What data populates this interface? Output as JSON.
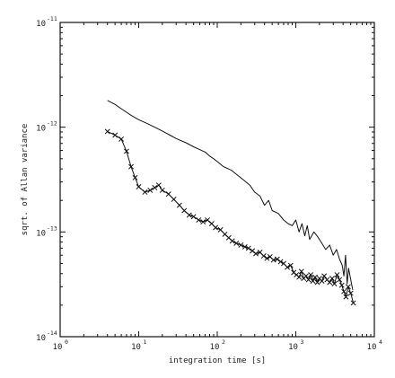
{
  "chart_data": {
    "type": "line",
    "xlabel": "integration time [s]",
    "ylabel": "sqrt. of Allan variance",
    "x_scale": "log",
    "y_scale": "log",
    "xlim": [
      1,
      10000
    ],
    "ylim": [
      1e-14,
      1e-11
    ],
    "grid": false,
    "legend": "none",
    "x_ticks": [
      {
        "base": "10",
        "exp": "0"
      },
      {
        "base": "10",
        "exp": "1"
      },
      {
        "base": "10",
        "exp": "2"
      },
      {
        "base": "10",
        "exp": "3"
      },
      {
        "base": "10",
        "exp": "4"
      }
    ],
    "y_ticks": [
      {
        "base": "10",
        "exp": "-14"
      },
      {
        "base": "10",
        "exp": "-13"
      },
      {
        "base": "10",
        "exp": "-12"
      },
      {
        "base": "10",
        "exp": "-11"
      }
    ],
    "series": [
      {
        "style": "line",
        "color": "#111111",
        "points": [
          [
            4,
            1.8e-12
          ],
          [
            5,
            1.65e-12
          ],
          [
            6,
            1.5e-12
          ],
          [
            8,
            1.3e-12
          ],
          [
            10,
            1.18e-12
          ],
          [
            13,
            1.08e-12
          ],
          [
            16,
            1e-12
          ],
          [
            20,
            9.2e-13
          ],
          [
            25,
            8.4e-13
          ],
          [
            30,
            7.8e-13
          ],
          [
            40,
            7.1e-13
          ],
          [
            50,
            6.5e-13
          ],
          [
            60,
            6.1e-13
          ],
          [
            70,
            5.8e-13
          ],
          [
            80,
            5.3e-13
          ],
          [
            90,
            5e-13
          ],
          [
            100,
            4.7e-13
          ],
          [
            120,
            4.2e-13
          ],
          [
            150,
            3.9e-13
          ],
          [
            180,
            3.5e-13
          ],
          [
            220,
            3.1e-13
          ],
          [
            260,
            2.8e-13
          ],
          [
            300,
            2.4e-13
          ],
          [
            350,
            2.2e-13
          ],
          [
            400,
            1.8e-13
          ],
          [
            450,
            2e-13
          ],
          [
            500,
            1.6e-13
          ],
          [
            600,
            1.5e-13
          ],
          [
            700,
            1.3e-13
          ],
          [
            800,
            1.2e-13
          ],
          [
            900,
            1.15e-13
          ],
          [
            1000,
            1.3e-13
          ],
          [
            1100,
            1e-13
          ],
          [
            1200,
            1.2e-13
          ],
          [
            1300,
            9.2e-14
          ],
          [
            1400,
            1.15e-13
          ],
          [
            1500,
            8.5e-14
          ],
          [
            1700,
            1e-13
          ],
          [
            1900,
            9e-14
          ],
          [
            2100,
            8e-14
          ],
          [
            2400,
            6.8e-14
          ],
          [
            2700,
            7.5e-14
          ],
          [
            3000,
            6e-14
          ],
          [
            3300,
            6.8e-14
          ],
          [
            3600,
            5.5e-14
          ],
          [
            3900,
            4.8e-14
          ],
          [
            4100,
            3.8e-14
          ],
          [
            4300,
            6e-14
          ],
          [
            4500,
            3.2e-14
          ],
          [
            4700,
            4.5e-14
          ],
          [
            5000,
            3.5e-14
          ],
          [
            5300,
            2.8e-14
          ]
        ]
      },
      {
        "style": "line-markers",
        "marker": "x",
        "color": "#111111",
        "points": [
          [
            4,
            9.1e-13
          ],
          [
            5,
            8.4e-13
          ],
          [
            6,
            7.7e-13
          ],
          [
            7,
            5.9e-13
          ],
          [
            8,
            4.2e-13
          ],
          [
            9,
            3.3e-13
          ],
          [
            10,
            2.7e-13
          ],
          [
            12,
            2.4e-13
          ],
          [
            14,
            2.5e-13
          ],
          [
            16,
            2.65e-13
          ],
          [
            18,
            2.8e-13
          ],
          [
            20,
            2.5e-13
          ],
          [
            24,
            2.3e-13
          ],
          [
            28,
            2.05e-13
          ],
          [
            33,
            1.8e-13
          ],
          [
            38,
            1.6e-13
          ],
          [
            44,
            1.45e-13
          ],
          [
            50,
            1.4e-13
          ],
          [
            58,
            1.3e-13
          ],
          [
            66,
            1.25e-13
          ],
          [
            75,
            1.3e-13
          ],
          [
            85,
            1.2e-13
          ],
          [
            95,
            1.1e-13
          ],
          [
            110,
            1.05e-13
          ],
          [
            125,
            9.5e-14
          ],
          [
            140,
            8.8e-14
          ],
          [
            155,
            8.2e-14
          ],
          [
            175,
            7.8e-14
          ],
          [
            200,
            7.5e-14
          ],
          [
            225,
            7.2e-14
          ],
          [
            250,
            7e-14
          ],
          [
            280,
            6.6e-14
          ],
          [
            310,
            6.2e-14
          ],
          [
            350,
            6.4e-14
          ],
          [
            390,
            5.9e-14
          ],
          [
            430,
            5.6e-14
          ],
          [
            470,
            5.8e-14
          ],
          [
            520,
            5.4e-14
          ],
          [
            580,
            5.5e-14
          ],
          [
            640,
            5.2e-14
          ],
          [
            700,
            5e-14
          ],
          [
            780,
            4.6e-14
          ],
          [
            860,
            4.8e-14
          ],
          [
            940,
            4.1e-14
          ],
          [
            1020,
            3.9e-14
          ],
          [
            1100,
            3.7e-14
          ],
          [
            1180,
            4.2e-14
          ],
          [
            1260,
            3.6e-14
          ],
          [
            1350,
            3.8e-14
          ],
          [
            1450,
            3.5e-14
          ],
          [
            1550,
            3.9e-14
          ],
          [
            1650,
            3.4e-14
          ],
          [
            1760,
            3.7e-14
          ],
          [
            1880,
            3.3e-14
          ],
          [
            2000,
            3.6e-14
          ],
          [
            2150,
            3.4e-14
          ],
          [
            2300,
            3.8e-14
          ],
          [
            2500,
            3.5e-14
          ],
          [
            2700,
            3.3e-14
          ],
          [
            2900,
            3.6e-14
          ],
          [
            3100,
            3.2e-14
          ],
          [
            3350,
            3.9e-14
          ],
          [
            3600,
            3.5e-14
          ],
          [
            3850,
            3.1e-14
          ],
          [
            4100,
            2.7e-14
          ],
          [
            4350,
            2.4e-14
          ],
          [
            4650,
            3e-14
          ],
          [
            5000,
            2.6e-14
          ],
          [
            5400,
            2.1e-14
          ]
        ]
      }
    ]
  }
}
